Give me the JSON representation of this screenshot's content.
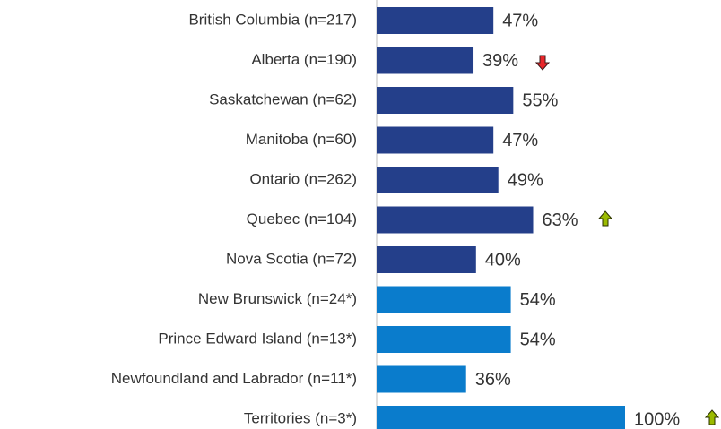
{
  "chart_data": {
    "type": "bar",
    "orientation": "horizontal",
    "categories": [
      "British Columbia (n=217)",
      "Alberta (n=190)",
      "Saskatchewan (n=62)",
      "Manitoba (n=60)",
      "Ontario (n=262)",
      "Quebec (n=104)",
      "Nova Scotia (n=72)",
      "New Brunswick (n=24*)",
      "Prince Edward Island (n=13*)",
      "Newfoundland and Labrador (n=11*)",
      "Territories (n=3*)"
    ],
    "values": [
      47,
      39,
      55,
      47,
      49,
      63,
      40,
      54,
      54,
      36,
      100
    ],
    "value_labels": [
      "47%",
      "39%",
      "55%",
      "47%",
      "49%",
      "63%",
      "40%",
      "54%",
      "54%",
      "36%",
      "100%"
    ],
    "colors": [
      "#243f8a",
      "#243f8a",
      "#243f8a",
      "#243f8a",
      "#243f8a",
      "#243f8a",
      "#243f8a",
      "#0a7ccc",
      "#0a7ccc",
      "#0a7ccc",
      "#0a7ccc"
    ],
    "xlim": [
      0,
      100
    ]
  }
}
